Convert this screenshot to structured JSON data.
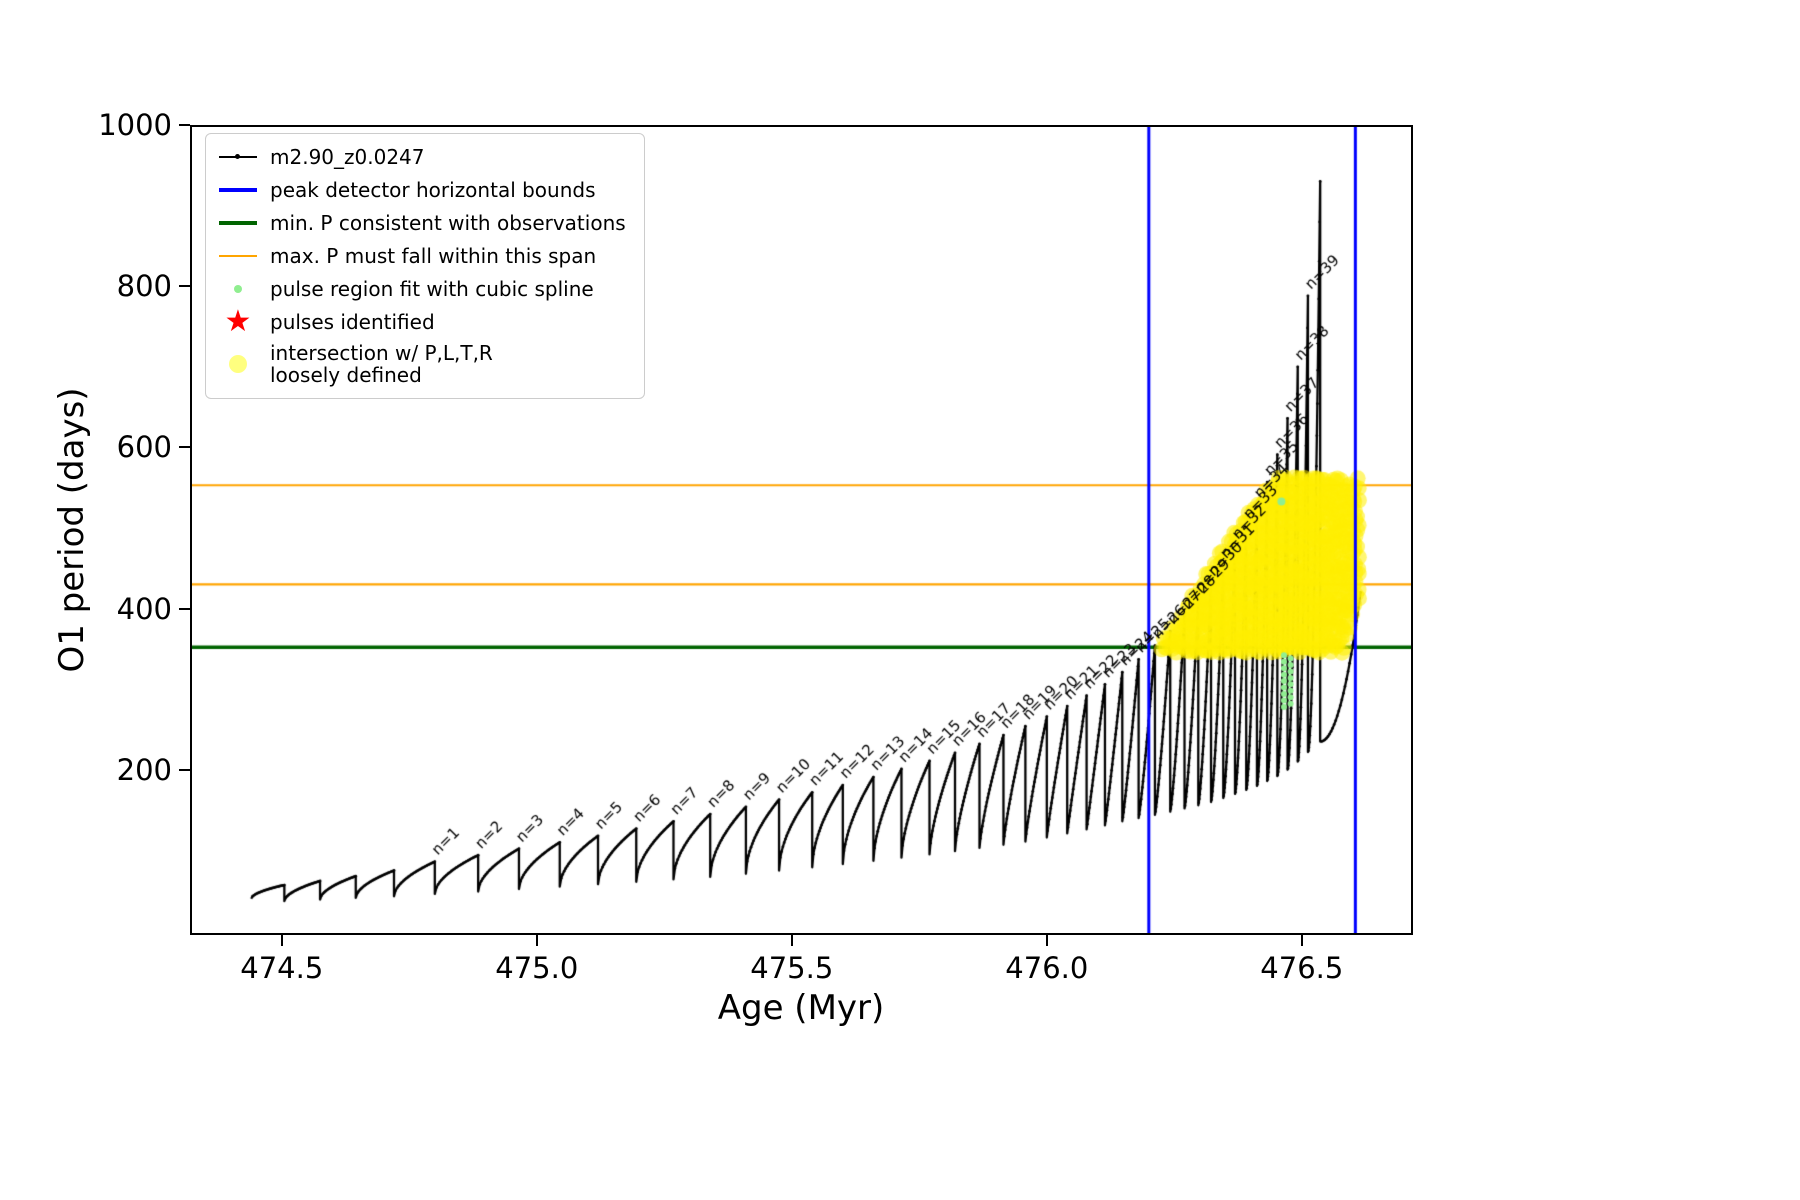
{
  "legend": {
    "entries": [
      {
        "label": "m2.90_z0.0247",
        "marker": "line-dot",
        "color": "#000000"
      },
      {
        "label": "peak detector horizontal bounds",
        "marker": "thick-line",
        "color": "#0000ff"
      },
      {
        "label": "min. P consistent with observations",
        "marker": "thick-line",
        "color": "#006400"
      },
      {
        "label": "max. P must fall within this span",
        "marker": "line",
        "color": "#ffa500"
      },
      {
        "label": "pulse region fit with cubic spline",
        "marker": "dot-small",
        "color": "#90ee90"
      },
      {
        "label": "pulses identified",
        "marker": "star",
        "color": "#ff0000"
      },
      {
        "label": "intersection w/ P,L,T,R\nloosely defined",
        "marker": "dot-large",
        "color": "#ffff00"
      }
    ]
  },
  "chart_data": {
    "type": "line",
    "title": "",
    "xlabel": "Age (Myr)",
    "ylabel": "O1 period (days)",
    "xlim": [
      474.32,
      476.718
    ],
    "ylim": [
      -5,
      1000
    ],
    "xticks": [
      474.5,
      475.0,
      475.5,
      476.0,
      476.5
    ],
    "xtick_labels": [
      "474.5",
      "475.0",
      "475.5",
      "476.0",
      "476.5"
    ],
    "yticks": [
      200,
      400,
      600,
      800,
      1000
    ],
    "ytick_labels": [
      "200",
      "400",
      "600",
      "800",
      "1000"
    ],
    "grid": false,
    "legend_position": "upper left",
    "series_name": "m2.90_z0.0247",
    "line_color": "#000000",
    "pulse_label_prefix": "n=",
    "start_point": {
      "x": 474.44,
      "y": 40
    },
    "pulse_cycles": [
      {
        "x": 474.505,
        "top": 57,
        "bottom": 40
      },
      {
        "x": 474.575,
        "top": 62,
        "bottom": 37
      },
      {
        "x": 474.645,
        "top": 68,
        "bottom": 39
      },
      {
        "x": 474.72,
        "top": 75,
        "bottom": 41
      },
      {
        "x": 474.8,
        "top": 86,
        "bottom": 43,
        "n": 1
      },
      {
        "x": 474.885,
        "top": 94,
        "bottom": 46,
        "n": 2
      },
      {
        "x": 474.965,
        "top": 102,
        "bottom": 49,
        "n": 3
      },
      {
        "x": 475.045,
        "top": 110,
        "bottom": 52,
        "n": 4
      },
      {
        "x": 475.12,
        "top": 118,
        "bottom": 55,
        "n": 5
      },
      {
        "x": 475.195,
        "top": 127,
        "bottom": 58,
        "n": 6
      },
      {
        "x": 475.268,
        "top": 136,
        "bottom": 61,
        "n": 7
      },
      {
        "x": 475.34,
        "top": 145,
        "bottom": 64,
        "n": 8
      },
      {
        "x": 475.41,
        "top": 154,
        "bottom": 67,
        "n": 9
      },
      {
        "x": 475.475,
        "top": 163,
        "bottom": 71,
        "n": 10
      },
      {
        "x": 475.54,
        "top": 172,
        "bottom": 75,
        "n": 11
      },
      {
        "x": 475.6,
        "top": 181,
        "bottom": 79,
        "n": 12
      },
      {
        "x": 475.66,
        "top": 191,
        "bottom": 83,
        "n": 13
      },
      {
        "x": 475.715,
        "top": 201,
        "bottom": 87,
        "n": 14
      },
      {
        "x": 475.77,
        "top": 211,
        "bottom": 91,
        "n": 15
      },
      {
        "x": 475.82,
        "top": 221,
        "bottom": 95,
        "n": 16
      },
      {
        "x": 475.868,
        "top": 232,
        "bottom": 99,
        "n": 17
      },
      {
        "x": 475.915,
        "top": 243,
        "bottom": 103,
        "n": 18
      },
      {
        "x": 475.958,
        "top": 254,
        "bottom": 107,
        "n": 19
      },
      {
        "x": 476.0,
        "top": 266,
        "bottom": 111,
        "n": 20
      },
      {
        "x": 476.04,
        "top": 279,
        "bottom": 116,
        "n": 21
      },
      {
        "x": 476.078,
        "top": 292,
        "bottom": 121,
        "n": 22
      },
      {
        "x": 476.114,
        "top": 306,
        "bottom": 126,
        "n": 23
      },
      {
        "x": 476.148,
        "top": 321,
        "bottom": 131,
        "n": 24
      },
      {
        "x": 476.18,
        "top": 337,
        "bottom": 136,
        "n": 25
      },
      {
        "x": 476.212,
        "top": 354,
        "bottom": 140,
        "n": 26
      },
      {
        "x": 476.242,
        "top": 372,
        "bottom": 144,
        "n": 27
      },
      {
        "x": 476.27,
        "top": 391,
        "bottom": 148,
        "n": 28
      },
      {
        "x": 476.297,
        "top": 411,
        "bottom": 152,
        "n": 29
      },
      {
        "x": 476.322,
        "top": 432,
        "bottom": 156,
        "n": 30
      },
      {
        "x": 476.346,
        "top": 454,
        "bottom": 160,
        "n": 31
      },
      {
        "x": 476.369,
        "top": 478,
        "bottom": 165,
        "n": 32
      },
      {
        "x": 476.391,
        "top": 503,
        "bottom": 170,
        "n": 33
      },
      {
        "x": 476.412,
        "top": 529,
        "bottom": 175,
        "n": 34
      },
      {
        "x": 476.432,
        "top": 557,
        "bottom": 180,
        "n": 35
      },
      {
        "x": 476.452,
        "top": 591,
        "bottom": 186,
        "n": 36
      },
      {
        "x": 476.472,
        "top": 636,
        "bottom": 192,
        "n": 37
      },
      {
        "x": 476.492,
        "top": 700,
        "bottom": 200,
        "n": 38
      },
      {
        "x": 476.512,
        "top": 788,
        "bottom": 210,
        "n": 39
      },
      {
        "x": 476.536,
        "top": 930,
        "bottom": 222
      },
      {
        "x": 476.615,
        "top": 420,
        "bottom": 235
      }
    ],
    "vlines": {
      "x": [
        476.2,
        476.605
      ],
      "color": "#0000ff",
      "label": "peak detector horizontal bounds"
    },
    "hlines": [
      {
        "y": 352,
        "color": "#006400",
        "width": 3.5,
        "label": "min. P consistent with observations"
      },
      {
        "y": 430,
        "color": "#ffa500",
        "width": 2.2,
        "label": "max. P must fall within this span"
      },
      {
        "y": 553,
        "color": "#ffa500",
        "width": 2.2,
        "label": "max. P must fall within this span"
      }
    ],
    "yellow_region": {
      "label": "intersection w/ P,L,T,R loosely defined",
      "color": "#ffee00",
      "dot_radius": 8,
      "x_start": 476.225,
      "x_end": 476.615,
      "x_step": 0.0055,
      "y_step": 13,
      "bottom_profile": [
        [
          476.225,
          350
        ],
        [
          476.58,
          350
        ],
        [
          476.6,
          395
        ],
        [
          476.615,
          425
        ]
      ],
      "top_profile": [
        [
          476.225,
          358
        ],
        [
          476.27,
          400
        ],
        [
          476.31,
          440
        ],
        [
          476.35,
          478
        ],
        [
          476.39,
          515
        ],
        [
          476.42,
          540
        ],
        [
          476.45,
          558
        ],
        [
          476.615,
          558
        ]
      ]
    },
    "green_dots": {
      "label": "pulse region fit with cubic spline",
      "color": "#90ee90",
      "radius": 3,
      "columns": [
        {
          "x": 476.465,
          "y_min": 278,
          "y_max": 345,
          "step": 8
        },
        {
          "x": 476.478,
          "y_min": 282,
          "y_max": 340,
          "step": 8
        }
      ],
      "extra": [
        [
          476.46,
          533
        ]
      ]
    }
  }
}
